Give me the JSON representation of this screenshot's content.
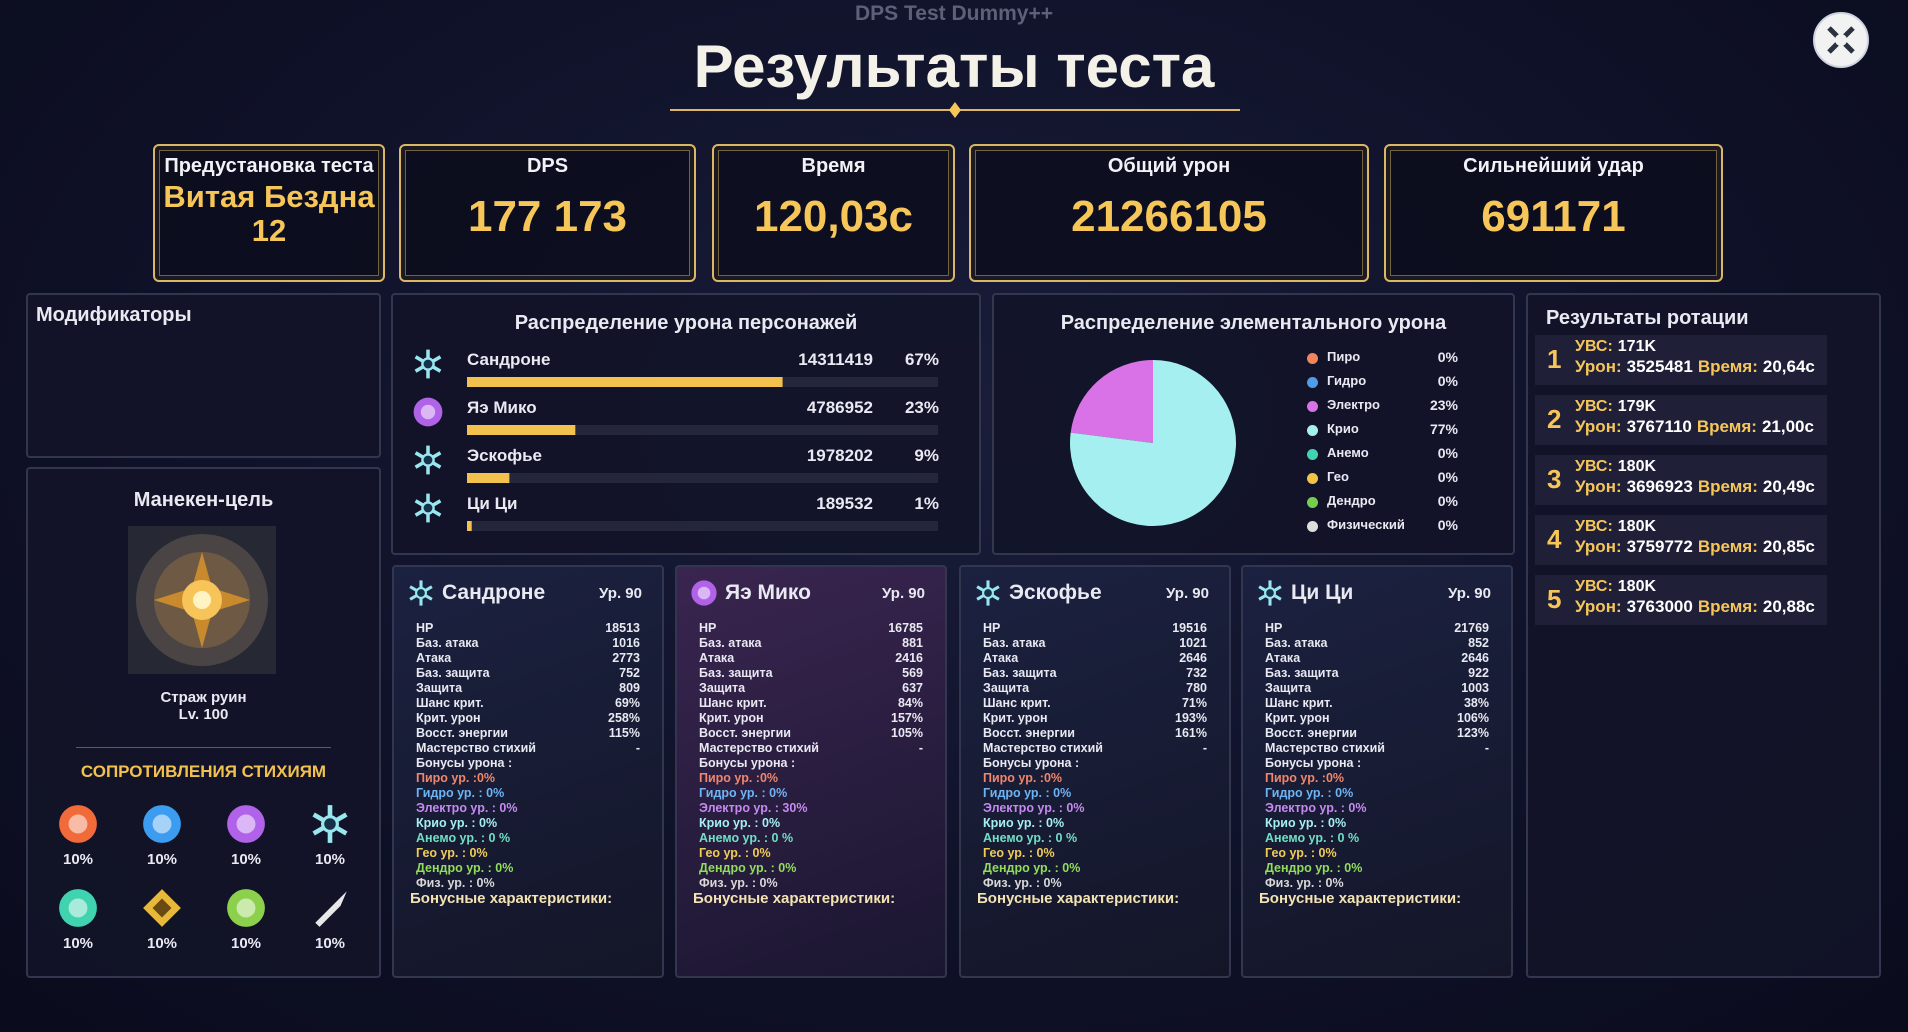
{
  "header": {
    "subtitle": "DPS Test Dummy++",
    "title": "Результаты теста"
  },
  "summary": [
    {
      "label": "Предустановка теста",
      "value": "Витая Бездна 12"
    },
    {
      "label": "DPS",
      "value": "177 173"
    },
    {
      "label": "Время",
      "value": "120,03с"
    },
    {
      "label": "Общий урон",
      "value": "21266105"
    },
    {
      "label": "Сильнейший удар",
      "value": "691171"
    }
  ],
  "modifiers": {
    "title": "Модификаторы"
  },
  "dummy": {
    "title": "Манекен-цель",
    "name": "Страж руин",
    "level": "Lv. 100",
    "res_title": "СОПРОТИВЛЕНИЯ СТИХИЯМ",
    "resistances": [
      "10%",
      "10%",
      "10%",
      "10%",
      "10%",
      "10%",
      "10%",
      "10%"
    ]
  },
  "character_damage": {
    "title": "Распределение урона персонажей",
    "names": [
      "Сандроне",
      "Яэ Мико",
      "Эскофье",
      "Ци Ци"
    ],
    "damage": [
      14311419,
      4786952,
      1978202,
      189532
    ],
    "shares": [
      67,
      23,
      9,
      1
    ],
    "share_labels": [
      "67%",
      "23%",
      "9%",
      "1%"
    ],
    "color": "#f2c14e"
  },
  "elemental": {
    "title": "Распределение элементального урона",
    "names": [
      "Пиро",
      "Гидро",
      "Электро",
      "Крио",
      "Анемо",
      "Гео",
      "Дендро",
      "Физический"
    ],
    "values": [
      0,
      0,
      23,
      77,
      0,
      0,
      0,
      0
    ],
    "value_labels": [
      "0%",
      "0%",
      "23%",
      "77%",
      "0%",
      "0%",
      "0%",
      "0%"
    ],
    "colors": [
      "#f2855a",
      "#4e9de8",
      "#d972e6",
      "#a6eff0",
      "#3fd3b0",
      "#f2c444",
      "#72d04c",
      "#dddddd"
    ]
  },
  "characters": [
    {
      "name": "Сандроне",
      "level": "Ур. 90",
      "stats": [
        [
          "HP",
          "18513"
        ],
        [
          "Баз. атака",
          "1016"
        ],
        [
          "Атака",
          "2773"
        ],
        [
          "Баз. защита",
          "752"
        ],
        [
          "Защита",
          "809"
        ],
        [
          "Шанс крит.",
          "69%"
        ],
        [
          "Крит. урон",
          "258%"
        ],
        [
          "Восст. энергии",
          "115%"
        ],
        [
          "Мастерство стихий",
          "-"
        ]
      ],
      "bonus_title": "Бонусы урона :",
      "bonuses": [
        "Пиро ур. :0%",
        "Гидро ур. : 0%",
        "Электро ур. : 0%",
        "Крио ур. : 0%",
        "Анемо ур. : 0 %",
        "Гео ур. : 0%",
        "Дендро ур. : 0%",
        "Физ. ур. : 0%"
      ],
      "extra": "Бонусные характеристики:"
    },
    {
      "name": "Яэ Мико",
      "level": "Ур. 90",
      "stats": [
        [
          "HP",
          "16785"
        ],
        [
          "Баз. атака",
          "881"
        ],
        [
          "Атака",
          "2416"
        ],
        [
          "Баз. защита",
          "569"
        ],
        [
          "Защита",
          "637"
        ],
        [
          "Шанс крит.",
          "84%"
        ],
        [
          "Крит. урон",
          "157%"
        ],
        [
          "Восст. энергии",
          "105%"
        ],
        [
          "Мастерство стихий",
          "-"
        ]
      ],
      "bonus_title": "Бонусы урона :",
      "bonuses": [
        "Пиро ур. :0%",
        "Гидро ур. : 0%",
        "Электро ур. : 30%",
        "Крио ур. : 0%",
        "Анемо ур. : 0 %",
        "Гео ур. : 0%",
        "Дендро ур. : 0%",
        "Физ. ур. : 0%"
      ],
      "extra": "Бонусные характеристики:"
    },
    {
      "name": "Эскофье",
      "level": "Ур. 90",
      "stats": [
        [
          "HP",
          "19516"
        ],
        [
          "Баз. атака",
          "1021"
        ],
        [
          "Атака",
          "2646"
        ],
        [
          "Баз. защита",
          "732"
        ],
        [
          "Защита",
          "780"
        ],
        [
          "Шанс крит.",
          "71%"
        ],
        [
          "Крит. урон",
          "193%"
        ],
        [
          "Восст. энергии",
          "161%"
        ],
        [
          "Мастерство стихий",
          "-"
        ]
      ],
      "bonus_title": "Бонусы урона :",
      "bonuses": [
        "Пиро ур. :0%",
        "Гидро ур. : 0%",
        "Электро ур. : 0%",
        "Крио ур. : 0%",
        "Анемо ур. : 0 %",
        "Гео ур. : 0%",
        "Дендро ур. : 0%",
        "Физ. ур. : 0%"
      ],
      "extra": "Бонусные характеристики:"
    },
    {
      "name": "Ци Ци",
      "level": "Ур. 90",
      "stats": [
        [
          "HP",
          "21769"
        ],
        [
          "Баз. атака",
          "852"
        ],
        [
          "Атака",
          "2646"
        ],
        [
          "Баз. защита",
          "922"
        ],
        [
          "Защита",
          "1003"
        ],
        [
          "Шанс крит.",
          "38%"
        ],
        [
          "Крит. урон",
          "106%"
        ],
        [
          "Восст. энергии",
          "123%"
        ],
        [
          "Мастерство стихий",
          "-"
        ]
      ],
      "bonus_title": "Бонусы урона :",
      "bonuses": [
        "Пиро ур. :0%",
        "Гидро ур. : 0%",
        "Электро ур. : 0%",
        "Крио ур. : 0%",
        "Анемо ур. : 0 %",
        "Гео ур. : 0%",
        "Дендро ур. : 0%",
        "Физ. ур. : 0%"
      ],
      "extra": "Бонусные характеристики:"
    }
  ],
  "rotation": {
    "title": "Результаты ротации",
    "ubc_label": "УВС:",
    "dmg_label": "Урон:",
    "time_label": "Время:",
    "items": [
      {
        "rank": 1,
        "ubc": "171K",
        "dmg": "3525481",
        "time": "20,64с"
      },
      {
        "rank": 2,
        "ubc": "179K",
        "dmg": "3767110",
        "time": "21,00с"
      },
      {
        "rank": 3,
        "ubc": "180K",
        "dmg": "3696923",
        "time": "20,49с"
      },
      {
        "rank": 4,
        "ubc": "180K",
        "dmg": "3759772",
        "time": "20,85с"
      },
      {
        "rank": 5,
        "ubc": "180K",
        "dmg": "3763000",
        "time": "20,88с"
      }
    ]
  }
}
